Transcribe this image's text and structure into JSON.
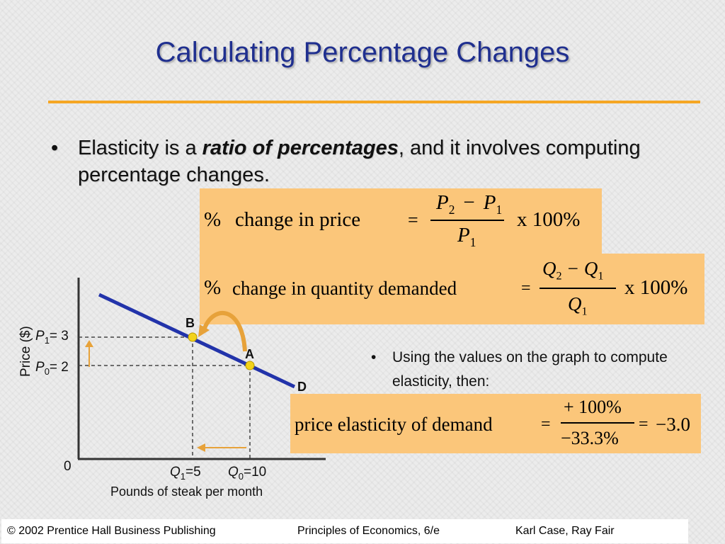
{
  "title": "Calculating Percentage Changes",
  "bullet1": {
    "text_before": "Elasticity is a ",
    "emphasis": "ratio of percentages",
    "text_after": ", and it involves computing percentage changes."
  },
  "formula_price": {
    "pct": "%",
    "label": "change in price",
    "eq": "=",
    "num_a": "P",
    "num_a_sub": "2",
    "minus": "−",
    "num_b": "P",
    "num_b_sub": "1",
    "den": "P",
    "den_sub": "1",
    "times": "x 100%"
  },
  "formula_quantity": {
    "pct": "%",
    "label": "change in quantity demanded",
    "eq": "=",
    "num_a": "Q",
    "num_a_sub": "2",
    "minus": "−",
    "num_b": "Q",
    "num_b_sub": "1",
    "den": "Q",
    "den_sub": "1",
    "times": "x 100%"
  },
  "bullet2": "Using the values on the graph to compute elasticity, then:",
  "formula_elasticity": {
    "label": "price elasticity of demand",
    "eq": "=",
    "numerator": "+ 100%",
    "denominator": "−33.3%",
    "eq2": "=",
    "result": "−3.0"
  },
  "graph": {
    "y_axis_label": "Price ($)",
    "x_axis_label": "Pounds of steak per month",
    "origin": "0",
    "p1_label": "P",
    "p1_sub": "1",
    "p1_value": "= 3",
    "p0_label": "P",
    "p0_sub": "0",
    "p0_value": "= 2",
    "q1_label": "Q",
    "q1_sub": "1",
    "q1_value": "=5",
    "q0_label": "Q",
    "q0_sub": "0",
    "q0_value": "=10",
    "point_b": "B",
    "point_a": "A",
    "curve_label": "D",
    "colors": {
      "curve": "#2233aa",
      "points": "#f2d21a",
      "arrows": "#f5a623"
    }
  },
  "footer": {
    "left": "© 2002 Prentice Hall Business Publishing",
    "center": "Principles of Economics, 6/e",
    "right": "Karl Case, Ray Fair"
  }
}
